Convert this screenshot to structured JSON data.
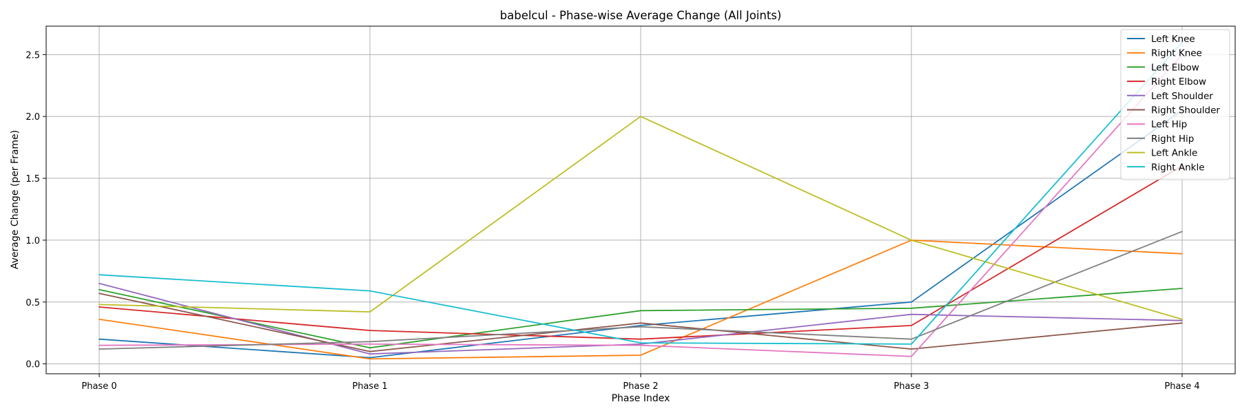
{
  "chart_data": {
    "type": "line",
    "title": "babelcul - Phase-wise Average Change (All Joints)",
    "xlabel": "Phase Index",
    "ylabel": "Average Change (per Frame)",
    "categories": [
      "Phase 0",
      "Phase 1",
      "Phase 2",
      "Phase 3",
      "Phase 4"
    ],
    "ylim": [
      -0.08,
      2.73
    ],
    "yticks": [
      0.0,
      0.5,
      1.0,
      1.5,
      2.0,
      2.5
    ],
    "ytick_labels": [
      "0.0",
      "0.5",
      "1.0",
      "1.5",
      "2.0",
      "2.5"
    ],
    "grid": true,
    "legend_position": "top-right",
    "series": [
      {
        "name": "Left Knee",
        "color": "#1f77b4",
        "values": [
          0.2,
          0.05,
          0.31,
          0.5,
          2.05
        ]
      },
      {
        "name": "Right Knee",
        "color": "#ff7f0e",
        "values": [
          0.36,
          0.04,
          0.07,
          1.0,
          0.89
        ]
      },
      {
        "name": "Left Elbow",
        "color": "#2ca02c",
        "values": [
          0.6,
          0.13,
          0.43,
          0.45,
          0.61
        ]
      },
      {
        "name": "Right Elbow",
        "color": "#d62728",
        "values": [
          0.46,
          0.27,
          0.2,
          0.31,
          1.6
        ]
      },
      {
        "name": "Left Shoulder",
        "color": "#9467bd",
        "values": [
          0.65,
          0.08,
          0.16,
          0.4,
          0.35
        ]
      },
      {
        "name": "Right Shoulder",
        "color": "#8c564b",
        "values": [
          0.57,
          0.1,
          0.33,
          0.12,
          0.33
        ]
      },
      {
        "name": "Left Hip",
        "color": "#e377c2",
        "values": [
          0.15,
          0.16,
          0.15,
          0.06,
          2.5
        ]
      },
      {
        "name": "Right Hip",
        "color": "#7f7f7f",
        "values": [
          0.12,
          0.18,
          0.3,
          0.2,
          1.07
        ]
      },
      {
        "name": "Left Ankle",
        "color": "#bcbd22",
        "values": [
          0.48,
          0.42,
          2.0,
          1.0,
          0.36
        ]
      },
      {
        "name": "Right Ankle",
        "color": "#17becf",
        "values": [
          0.72,
          0.59,
          0.17,
          0.16,
          2.6
        ]
      }
    ]
  }
}
